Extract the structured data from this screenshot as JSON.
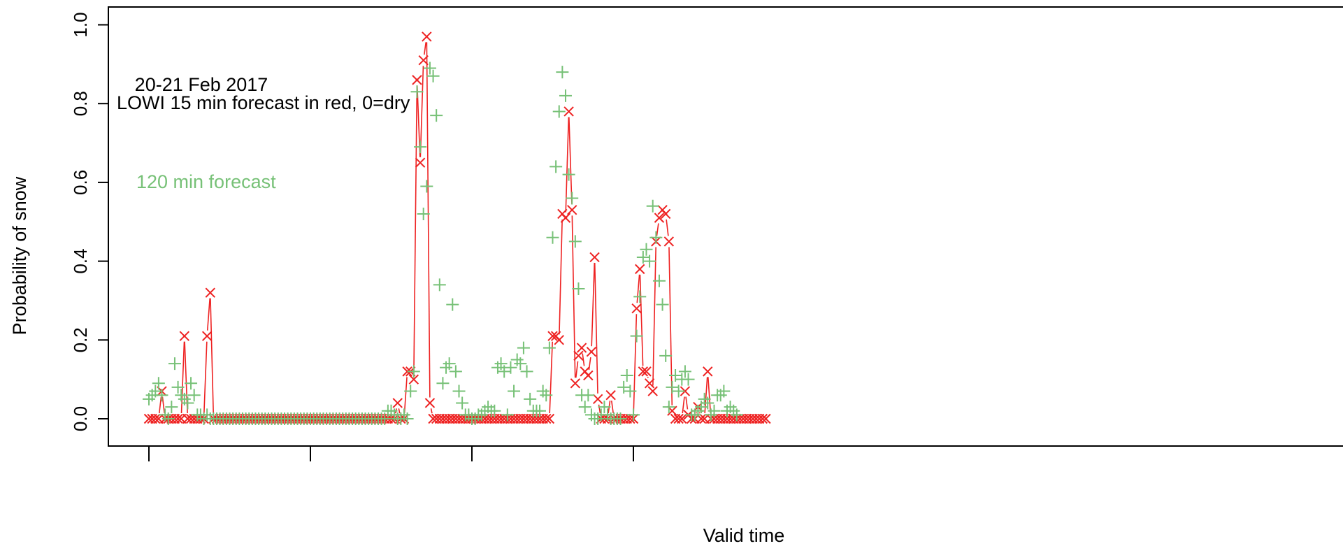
{
  "chart_data": {
    "type": "scatter",
    "title": "",
    "xlabel": "Valid time",
    "ylabel": "Probability of snow",
    "ylim": [
      0,
      1
    ],
    "yticks": [
      0.0,
      0.2,
      0.4,
      0.6,
      0.8,
      1.0
    ],
    "ytick_labels": [
      "0.0",
      "0.2",
      "0.4",
      "0.6",
      "0.8",
      "1.0"
    ],
    "xlim": [
      -1,
      179
    ],
    "xticks": [
      0,
      50,
      100,
      150
    ],
    "grid": false,
    "annotations": {
      "date": "20-21 Feb 2017",
      "red_note": "LOWI 15 min forecast in red,  0=dry",
      "green_note": "120 min forecast"
    },
    "colors": {
      "red": "#ee2222",
      "green": "#77c177",
      "axis": "#000000"
    },
    "series": [
      {
        "marker": "x",
        "line": true,
        "color": "red",
        "values": [
          0,
          0,
          0,
          0,
          0.07,
          0,
          0,
          0,
          0,
          0,
          0,
          0.21,
          0,
          0,
          0,
          0,
          0,
          0,
          0.21,
          0.32,
          0,
          0,
          0,
          0,
          0,
          0,
          0,
          0,
          0,
          0,
          0,
          0,
          0,
          0,
          0,
          0,
          0,
          0,
          0,
          0,
          0,
          0,
          0,
          0,
          0,
          0,
          0,
          0,
          0,
          0,
          0,
          0,
          0,
          0,
          0,
          0,
          0,
          0,
          0,
          0,
          0,
          0,
          0,
          0,
          0,
          0,
          0,
          0,
          0,
          0,
          0,
          0,
          0,
          0,
          0,
          0,
          0,
          0.04,
          0,
          0,
          0.12,
          0.12,
          0.1,
          0.86,
          0.65,
          0.91,
          0.97,
          0.04,
          0,
          0,
          0,
          0,
          0,
          0,
          0,
          0,
          0,
          0,
          0,
          0,
          0,
          0,
          0,
          0,
          0,
          0,
          0,
          0,
          0,
          0,
          0,
          0,
          0,
          0,
          0,
          0,
          0,
          0,
          0,
          0,
          0,
          0,
          0,
          0,
          0,
          0.21,
          0.21,
          0.2,
          0.52,
          0.51,
          0.78,
          0.53,
          0.09,
          0.16,
          0.18,
          0.12,
          0.11,
          0.17,
          0.41,
          0.05,
          0,
          0,
          0,
          0.06,
          0,
          0,
          0,
          0,
          0,
          0,
          0,
          0.28,
          0.38,
          0.12,
          0.12,
          0.09,
          0.07,
          0.45,
          0.51,
          0.53,
          0.52,
          0.45,
          0.02,
          0,
          0,
          0,
          0.07,
          0.01,
          0,
          0,
          0.03,
          0,
          0,
          0.12,
          0,
          0,
          0,
          0,
          0,
          0,
          0,
          0,
          0,
          0,
          0,
          0,
          0,
          0,
          0,
          0,
          0,
          0
        ]
      },
      {
        "marker": "+",
        "line": false,
        "color": "green",
        "values": [
          0.05,
          0.06,
          0.07,
          0.09,
          0.06,
          0.01,
          0,
          0.03,
          0.14,
          0.08,
          0.06,
          0.05,
          0.04,
          0.09,
          0.06,
          0.01,
          0.01,
          0,
          0.01,
          0,
          0,
          0,
          0,
          0,
          0,
          0,
          0,
          0,
          0,
          0,
          0,
          0,
          0,
          0,
          0,
          0,
          0,
          0,
          0,
          0,
          0,
          0,
          0,
          0,
          0,
          0,
          0,
          0,
          0,
          0,
          0,
          0,
          0,
          0,
          0,
          0,
          0,
          0,
          0,
          0,
          0,
          0,
          0,
          0,
          0,
          0,
          0,
          0,
          0,
          0,
          0,
          0,
          0,
          0,
          0.02,
          0.02,
          0.01,
          0,
          0,
          0.01,
          0,
          0.07,
          0.12,
          0.83,
          0.69,
          0.52,
          0.59,
          0.89,
          0.87,
          0.77,
          0.34,
          0.09,
          0.13,
          0.14,
          0.29,
          0.12,
          0.07,
          0.04,
          0.01,
          0.01,
          0,
          0,
          0.01,
          0.01,
          0.02,
          0.03,
          0.02,
          0.02,
          0.13,
          0.14,
          0.12,
          0.01,
          0.13,
          0.07,
          0.15,
          0.14,
          0.18,
          0.12,
          0.05,
          0.02,
          0.02,
          0.02,
          0.07,
          0.06,
          0.18,
          0.46,
          0.64,
          0.78,
          0.88,
          0.82,
          0.62,
          0.56,
          0.45,
          0.33,
          0.06,
          0.03,
          0.06,
          0.01,
          0,
          0,
          0.01,
          0.03,
          0.01,
          0,
          0,
          0,
          0,
          0.08,
          0.11,
          0.07,
          0.01,
          0.21,
          0.31,
          0.41,
          0.43,
          0.4,
          0.54,
          0.46,
          0.35,
          0.29,
          0.16,
          0.03,
          0.08,
          0.11,
          0.07,
          0.1,
          0.12,
          0.1,
          0.01,
          0.01,
          0.02,
          0.03,
          0.05,
          0.04,
          0.01,
          0.02,
          0.06,
          0.06,
          0.07,
          0.02,
          0.03,
          0.02,
          0.01
        ]
      }
    ]
  }
}
